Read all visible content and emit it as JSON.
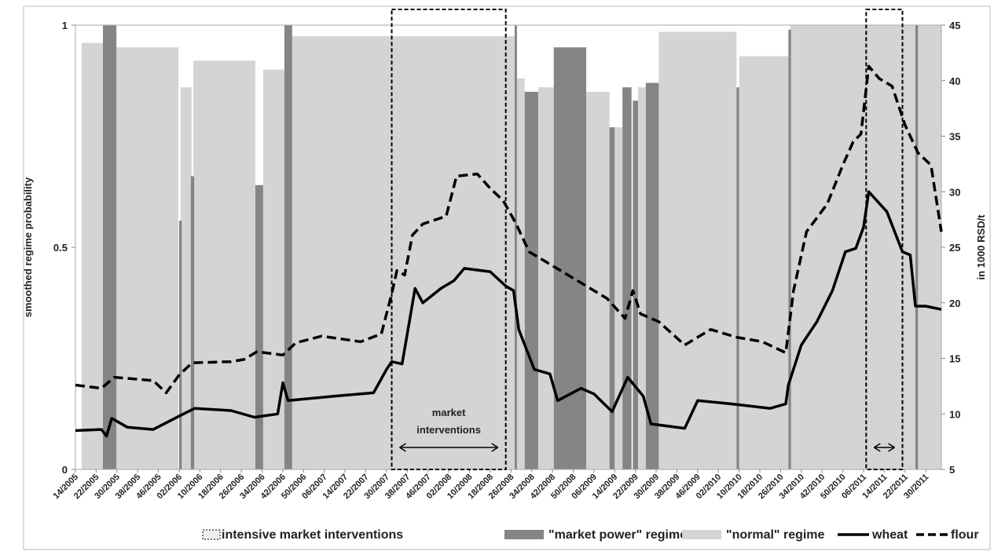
{
  "chart_data": {
    "type": "regime-line",
    "y_label": "smoothed regime probability",
    "y2_label": "in 1000 RSD/t",
    "annotation": "market interventions",
    "xlim": [
      0,
      334
    ],
    "xticks": [
      {
        "value": 0,
        "label": "14/2005"
      },
      {
        "value": 8,
        "label": "22/2005"
      },
      {
        "value": 16,
        "label": "30/2005"
      },
      {
        "value": 24,
        "label": "38/2005"
      },
      {
        "value": 32,
        "label": "46/2005"
      },
      {
        "value": 40,
        "label": "02/2006"
      },
      {
        "value": 48,
        "label": "10/2006"
      },
      {
        "value": 56,
        "label": "18/2006"
      },
      {
        "value": 64,
        "label": "26/2006"
      },
      {
        "value": 72,
        "label": "34/2006"
      },
      {
        "value": 80,
        "label": "42/2006"
      },
      {
        "value": 88,
        "label": "50/2006"
      },
      {
        "value": 96,
        "label": "06/2007"
      },
      {
        "value": 104,
        "label": "14/2007"
      },
      {
        "value": 112,
        "label": "22/2007"
      },
      {
        "value": 120,
        "label": "30/2007"
      },
      {
        "value": 128,
        "label": "38/2007"
      },
      {
        "value": 136,
        "label": "46/2007"
      },
      {
        "value": 144,
        "label": "02/2008"
      },
      {
        "value": 152,
        "label": "10/2008"
      },
      {
        "value": 160,
        "label": "18/2008"
      },
      {
        "value": 168,
        "label": "26/2008"
      },
      {
        "value": 176,
        "label": "34/2008"
      },
      {
        "value": 184,
        "label": "42/2008"
      },
      {
        "value": 192,
        "label": "50/2008"
      },
      {
        "value": 200,
        "label": "06/2009"
      },
      {
        "value": 208,
        "label": "14/2009"
      },
      {
        "value": 216,
        "label": "22/2009"
      },
      {
        "value": 224,
        "label": "30/2009"
      },
      {
        "value": 232,
        "label": "38/2009"
      },
      {
        "value": 240,
        "label": "46/2009"
      },
      {
        "value": 248,
        "label": "02/2010"
      },
      {
        "value": 256,
        "label": "10/2010"
      },
      {
        "value": 264,
        "label": "18/2010"
      },
      {
        "value": 272,
        "label": "26/2010"
      },
      {
        "value": 280,
        "label": "34/2010"
      },
      {
        "value": 288,
        "label": "42/2010"
      },
      {
        "value": 296,
        "label": "50/2010"
      },
      {
        "value": 304,
        "label": "06/2011"
      },
      {
        "value": 312,
        "label": "14/2011"
      },
      {
        "value": 320,
        "label": "22/2011"
      },
      {
        "value": 328,
        "label": "30/2011"
      }
    ],
    "ylim": [
      0,
      1
    ],
    "yticks": [
      0,
      0.5,
      1
    ],
    "y2lim": [
      5,
      45
    ],
    "y2ticks": [
      5,
      10,
      15,
      20,
      25,
      30,
      35,
      40,
      45
    ],
    "interventions": {
      "name": "intensive market interventions",
      "start": [
        122,
        305
      ],
      "end": [
        166,
        319
      ]
    },
    "regimes": [
      {
        "name": "\"normal\" regime",
        "color": "#d4d4d4",
        "start": [
          2.4,
          15.8,
          40.6,
          45.5,
          72.4,
          83.6,
          170,
          178.5,
          197,
          208,
          217,
          225,
          256,
          275.8
        ],
        "end": [
          15.8,
          39.7,
          44.8,
          69.4,
          80.6,
          169.4,
          173.3,
          184.5,
          206,
          211,
          220,
          255,
          275,
          334
        ],
        "values": [
          0.96,
          0.95,
          0.86,
          0.92,
          0.9,
          0.975,
          0.88,
          0.86,
          0.85,
          0.77,
          0.86,
          0.985,
          0.93,
          1.0
        ]
      },
      {
        "name": "\"market power\" regime",
        "color": "#858585",
        "start": [
          10.6,
          40,
          44.5,
          69.4,
          80.6,
          169.4,
          173.3,
          184.5,
          206,
          211,
          215,
          220,
          255,
          275,
          324
        ],
        "end": [
          15.8,
          41,
          45.8,
          72.4,
          83.6,
          170.3,
          178.5,
          197,
          208,
          214.5,
          217,
          225,
          256,
          276,
          325
        ],
        "values": [
          1.0,
          0.56,
          0.66,
          0.64,
          1.0,
          1.0,
          0.85,
          0.95,
          0.77,
          0.86,
          0.83,
          0.87,
          0.86,
          0.99,
          1.0
        ]
      }
    ],
    "series": [
      {
        "name": "wheat",
        "color": "#000000",
        "dash": false,
        "axis": "y2",
        "x": [
          0,
          10,
          12,
          14,
          20,
          30,
          40,
          46,
          60,
          69,
          78,
          80,
          82,
          100,
          115,
          120,
          122,
          126,
          128,
          131,
          134,
          141,
          146,
          150,
          160,
          166,
          169,
          171,
          177,
          183,
          186,
          195,
          200,
          207,
          213,
          219,
          222,
          235,
          240,
          253,
          268,
          274,
          275,
          280,
          286,
          292,
          297,
          301,
          304,
          306,
          313,
          319,
          322,
          324,
          328,
          334
        ],
        "values": [
          8.5,
          8.6,
          8.0,
          9.6,
          8.8,
          8.6,
          9.8,
          10.5,
          10.3,
          9.7,
          10.0,
          12.8,
          11.2,
          11.6,
          11.9,
          14.0,
          14.7,
          14.5,
          17.2,
          21.3,
          20.0,
          21.3,
          22.0,
          23.1,
          22.8,
          21.5,
          21.1,
          17.6,
          14.0,
          13.6,
          11.2,
          12.3,
          11.8,
          10.2,
          13.3,
          11.6,
          9.1,
          8.7,
          11.2,
          10.9,
          10.5,
          10.9,
          12.6,
          16.2,
          18.3,
          21.1,
          24.6,
          24.9,
          26.8,
          30.0,
          28.2,
          24.6,
          24.3,
          19.7,
          19.7,
          19.4
        ]
      },
      {
        "name": "flour",
        "color": "#000000",
        "dash": true,
        "axis": "y2",
        "x": [
          0,
          10,
          15,
          30,
          35,
          40,
          45,
          60,
          65,
          70,
          80,
          85,
          95,
          110,
          118,
          122,
          124,
          127,
          130,
          134,
          143,
          147,
          155,
          160,
          165,
          170,
          175,
          185,
          195,
          205,
          212,
          215,
          218,
          225,
          235,
          245,
          255,
          265,
          274,
          277,
          282,
          290,
          296,
          300,
          303,
          306,
          310,
          315,
          320,
          325,
          330,
          334
        ],
        "values": [
          12.6,
          12.3,
          13.3,
          13.0,
          11.9,
          13.5,
          14.6,
          14.7,
          14.9,
          15.6,
          15.3,
          16.4,
          17.0,
          16.5,
          17.2,
          20.8,
          22.9,
          22.5,
          26.1,
          27.1,
          27.8,
          31.4,
          31.6,
          30.3,
          29.2,
          27.1,
          24.6,
          23.2,
          21.8,
          20.4,
          18.6,
          21.1,
          19.0,
          18.3,
          16.2,
          17.6,
          16.9,
          16.5,
          15.5,
          21.1,
          26.4,
          28.9,
          32.4,
          34.5,
          35.2,
          41.3,
          40.2,
          39.5,
          36.0,
          33.5,
          32.4,
          26.4
        ]
      }
    ]
  }
}
